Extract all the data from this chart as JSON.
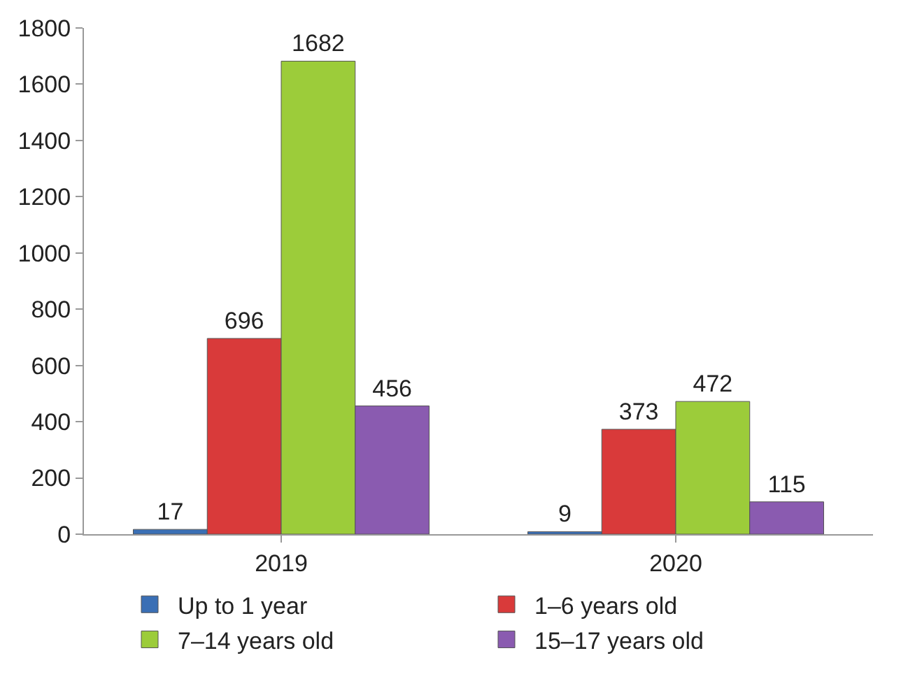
{
  "chart_data": {
    "type": "bar",
    "categories": [
      "2019",
      "2020"
    ],
    "series": [
      {
        "name": "Up to 1 year",
        "color": "#3a6fb5",
        "values": [
          17,
          9
        ]
      },
      {
        "name": "1–6 years old",
        "color": "#d93a3a",
        "values": [
          696,
          373
        ]
      },
      {
        "name": "7–14 years old",
        "color": "#9ccc3a",
        "values": [
          1682,
          472
        ]
      },
      {
        "name": "15–17 years old",
        "color": "#8a5bb0",
        "values": [
          456,
          115
        ]
      }
    ],
    "ylim": [
      0,
      1800
    ],
    "yticks": [
      0,
      200,
      400,
      600,
      800,
      1000,
      1200,
      1400,
      1600,
      1800
    ],
    "data_labels": true,
    "legend": "bottom"
  }
}
